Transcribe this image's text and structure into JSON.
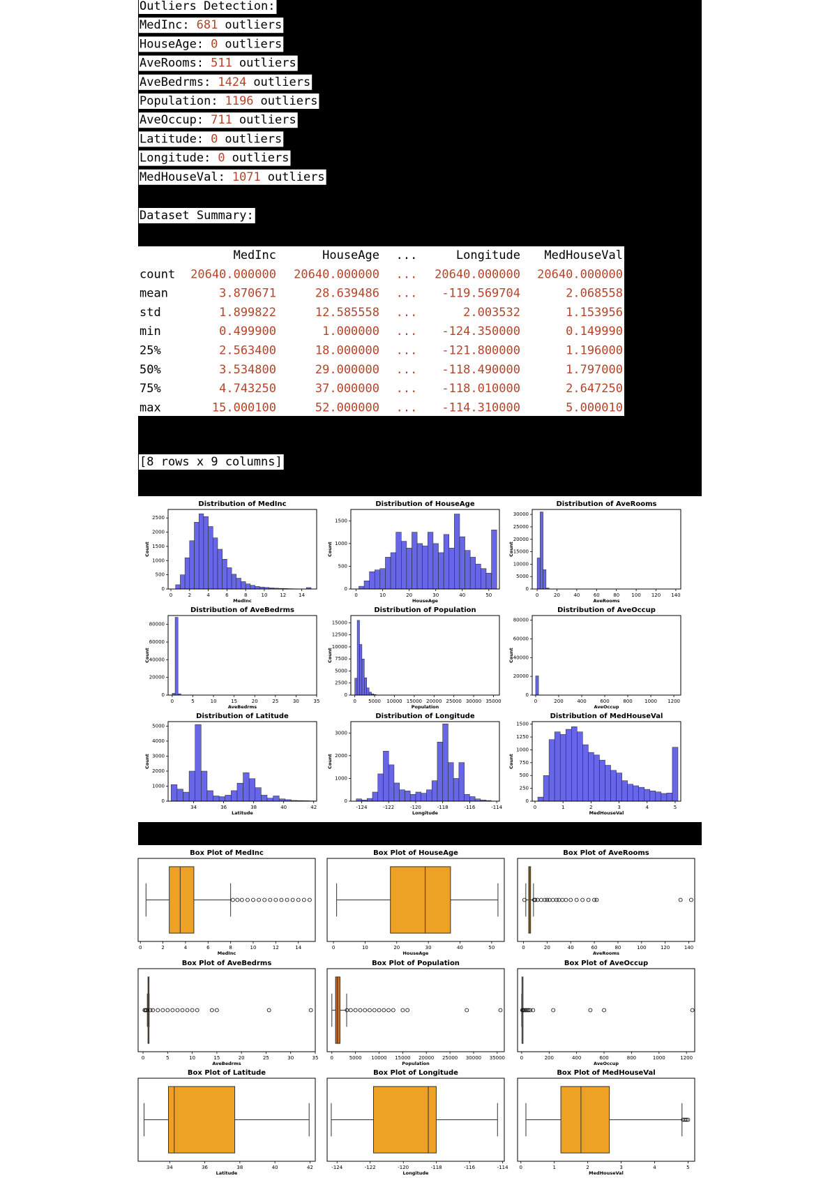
{
  "outliers": {
    "title": "Outliers Detection:",
    "lines": [
      {
        "name": "MedInc:",
        "count": 681,
        "suffix": "outliers"
      },
      {
        "name": "HouseAge:",
        "count": 0,
        "suffix": "outliers"
      },
      {
        "name": "AveRooms:",
        "count": 511,
        "suffix": "outliers"
      },
      {
        "name": "AveBedrms:",
        "count": 1424,
        "suffix": "outliers"
      },
      {
        "name": "Population:",
        "count": 1196,
        "suffix": "outliers"
      },
      {
        "name": "AveOccup:",
        "count": 711,
        "suffix": "outliers"
      },
      {
        "name": "Latitude:",
        "count": 0,
        "suffix": "outliers"
      },
      {
        "name": "Longitude:",
        "count": 0,
        "suffix": "outliers"
      },
      {
        "name": "MedHouseVal:",
        "count": 1071,
        "suffix": "outliers"
      }
    ]
  },
  "summary": {
    "title": "Dataset Summary:",
    "columns": [
      "MedInc",
      "HouseAge",
      "...",
      "Longitude",
      "MedHouseVal"
    ],
    "rows": [
      {
        "label": "count",
        "cells": [
          "20640.000000",
          "20640.000000",
          "...",
          "20640.000000",
          "20640.000000"
        ]
      },
      {
        "label": "mean",
        "cells": [
          "3.870671",
          "28.639486",
          "...",
          "-119.569704",
          "2.068558"
        ]
      },
      {
        "label": "std",
        "cells": [
          "1.899822",
          "12.585558",
          "...",
          "2.003532",
          "1.153956"
        ]
      },
      {
        "label": "min",
        "cells": [
          "0.499900",
          "1.000000",
          "...",
          "-124.350000",
          "0.149990"
        ]
      },
      {
        "label": "25%",
        "cells": [
          "2.563400",
          "18.000000",
          "...",
          "-121.800000",
          "1.196000"
        ]
      },
      {
        "label": "50%",
        "cells": [
          "3.534800",
          "29.000000",
          "...",
          "-118.490000",
          "1.797000"
        ]
      },
      {
        "label": "75%",
        "cells": [
          "4.743250",
          "37.000000",
          "...",
          "-118.010000",
          "2.647250"
        ]
      },
      {
        "label": "max",
        "cells": [
          "15.000100",
          "52.000000",
          "...",
          "-114.310000",
          "5.000010"
        ]
      }
    ],
    "footer": "[8 rows x 9 columns]"
  },
  "chart_data": [
    {
      "type": "histogram",
      "title": "Distribution of MedInc",
      "xlabel": "MedInc",
      "ylabel": "Count",
      "color": "#6666e6",
      "bins": [
        0.5,
        1,
        1.5,
        2,
        2.5,
        3,
        3.5,
        4,
        4.5,
        5,
        5.5,
        6,
        6.5,
        7,
        7.5,
        8,
        8.5,
        9,
        9.5,
        10,
        10.5,
        11,
        11.5,
        12,
        12.5,
        13,
        13.5,
        14,
        14.5,
        15
      ],
      "counts": [
        150,
        500,
        1100,
        1700,
        2350,
        2650,
        2550,
        2200,
        1800,
        1400,
        1050,
        750,
        520,
        380,
        260,
        180,
        130,
        90,
        70,
        55,
        40,
        30,
        22,
        18,
        12,
        8,
        5,
        5,
        50
      ],
      "xlim": [
        -0.3,
        15.6
      ],
      "xticks": [
        0,
        2,
        4,
        6,
        8,
        10,
        12,
        14
      ],
      "ylim": [
        0,
        2800
      ],
      "yticks": [
        0,
        500,
        1000,
        1500,
        2000,
        2500
      ]
    },
    {
      "type": "histogram",
      "title": "Distribution of HouseAge",
      "xlabel": "HouseAge",
      "ylabel": "Count",
      "color": "#6666e6",
      "bins": [
        1,
        3,
        5,
        7,
        9,
        11,
        13,
        15,
        17,
        19,
        21,
        23,
        25,
        27,
        29,
        31,
        33,
        35,
        37,
        39,
        41,
        43,
        45,
        47,
        49,
        51,
        53
      ],
      "counts": [
        60,
        180,
        380,
        420,
        450,
        700,
        800,
        1250,
        1050,
        900,
        1250,
        1000,
        950,
        1250,
        1000,
        800,
        1200,
        900,
        1650,
        1150,
        850,
        700,
        550,
        450,
        350,
        1300
      ],
      "xlim": [
        -2,
        54
      ],
      "xticks": [
        0,
        10,
        20,
        30,
        40,
        50
      ],
      "ylim": [
        0,
        1750
      ],
      "yticks": [
        0,
        500,
        1000,
        1500
      ]
    },
    {
      "type": "histogram",
      "title": "Distribution of AveRooms",
      "xlabel": "AveRooms",
      "ylabel": "Count",
      "color": "#6666e6",
      "bins": [
        0,
        3,
        6,
        9,
        12,
        141
      ],
      "counts": [
        12500,
        31000,
        7800,
        400,
        60
      ],
      "xlim": [
        -5,
        145
      ],
      "xticks": [
        0,
        20,
        40,
        60,
        80,
        100,
        120,
        140
      ],
      "ylim": [
        0,
        32000
      ],
      "yticks": [
        0,
        5000,
        10000,
        15000,
        20000,
        25000,
        30000
      ]
    },
    {
      "type": "histogram",
      "title": "Distribution of AveBedrms",
      "xlabel": "AveBedrms",
      "ylabel": "Count",
      "color": "#6666e6",
      "bins": [
        0,
        0.7,
        1.4,
        2.1
      ],
      "counts": [
        2000,
        88000,
        1500
      ],
      "xlim": [
        -1,
        35
      ],
      "xticks": [
        0,
        5,
        10,
        15,
        20,
        25,
        30,
        35
      ],
      "ylim": [
        0,
        90000
      ],
      "yticks": [
        0,
        20000,
        40000,
        60000,
        80000
      ]
    },
    {
      "type": "histogram",
      "title": "Distribution of Population",
      "xlabel": "Population",
      "ylabel": "Count",
      "color": "#6666e6",
      "bins": [
        0,
        600,
        1200,
        1800,
        2400,
        3000,
        3600,
        4200,
        4800,
        5400
      ],
      "counts": [
        3500,
        15500,
        10500,
        7500,
        3600,
        1500,
        600,
        250,
        100
      ],
      "xlim": [
        -1000,
        36500
      ],
      "xticks": [
        0,
        5000,
        10000,
        15000,
        20000,
        25000,
        30000,
        35000
      ],
      "ylim": [
        0,
        16500
      ],
      "yticks": [
        0,
        2500,
        5000,
        7500,
        10000,
        12500,
        15000
      ]
    },
    {
      "type": "histogram",
      "title": "Distribution of AveOccup",
      "xlabel": "AveOccup",
      "ylabel": "Count",
      "color": "#6666e6",
      "bins": [
        0,
        25,
        50
      ],
      "counts": [
        20500,
        100
      ],
      "xlim": [
        -30,
        1260
      ],
      "xticks": [
        0,
        200,
        400,
        600,
        800,
        1000,
        1200
      ],
      "ylim": [
        0,
        85000
      ],
      "yticks": [
        0,
        20000,
        40000,
        60000,
        80000
      ]
    },
    {
      "type": "histogram",
      "title": "Distribution of Latitude",
      "xlabel": "Latitude",
      "ylabel": "Count",
      "color": "#6666e6",
      "bins": [
        32.5,
        32.9,
        33.3,
        33.7,
        34.1,
        34.5,
        34.9,
        35.3,
        35.7,
        36.1,
        36.5,
        36.9,
        37.3,
        37.7,
        38.1,
        38.5,
        38.9,
        39.3,
        39.7,
        40.1,
        40.5,
        40.9,
        41.3,
        41.7,
        42.1
      ],
      "counts": [
        1100,
        800,
        600,
        2000,
        5100,
        2000,
        700,
        350,
        300,
        400,
        700,
        1200,
        1900,
        1500,
        900,
        400,
        200,
        350,
        150,
        100,
        50,
        40,
        30,
        20
      ],
      "xlim": [
        32.3,
        42.2
      ],
      "xticks": [
        34,
        36,
        38,
        40,
        42
      ],
      "ylim": [
        0,
        5300
      ],
      "yticks": [
        0,
        1000,
        2000,
        3000,
        4000,
        5000
      ]
    },
    {
      "type": "histogram",
      "title": "Distribution of Longitude",
      "xlabel": "Longitude",
      "ylabel": "Count",
      "color": "#6666e6",
      "bins": [
        -124.4,
        -124,
        -123.6,
        -123.2,
        -122.8,
        -122.4,
        -122,
        -121.6,
        -121.2,
        -120.8,
        -120.4,
        -120,
        -119.6,
        -119.2,
        -118.8,
        -118.4,
        -118,
        -117.6,
        -117.2,
        -116.8,
        -116.4,
        -116,
        -115.6,
        -115.2,
        -114.8,
        -114.4
      ],
      "counts": [
        100,
        50,
        120,
        400,
        1200,
        2200,
        1600,
        800,
        500,
        450,
        300,
        400,
        350,
        500,
        900,
        2600,
        3400,
        1700,
        1000,
        1700,
        300,
        200,
        100,
        50,
        30
      ],
      "xlim": [
        -124.8,
        -113.8
      ],
      "xticks": [
        -124,
        -122,
        -120,
        -118,
        -116,
        -114
      ],
      "ylim": [
        0,
        3500
      ],
      "yticks": [
        0,
        1000,
        2000,
        3000
      ]
    },
    {
      "type": "histogram",
      "title": "Distribution of MedHouseVal",
      "xlabel": "MedHouseVal",
      "ylabel": "Count",
      "color": "#6666e6",
      "bins": [
        0.1,
        0.3,
        0.5,
        0.7,
        0.9,
        1.1,
        1.3,
        1.5,
        1.7,
        1.9,
        2.1,
        2.3,
        2.5,
        2.7,
        2.9,
        3.1,
        3.3,
        3.5,
        3.7,
        3.9,
        4.1,
        4.3,
        4.5,
        4.7,
        4.9,
        5.1
      ],
      "counts": [
        80,
        500,
        1200,
        1350,
        1300,
        1400,
        1450,
        1350,
        1100,
        950,
        900,
        800,
        700,
        600,
        550,
        400,
        330,
        300,
        270,
        230,
        200,
        180,
        150,
        160,
        1050
      ],
      "xlim": [
        -0.1,
        5.2
      ],
      "xticks": [
        0,
        1,
        2,
        3,
        4,
        5
      ],
      "ylim": [
        0,
        1550
      ],
      "yticks": [
        0,
        250,
        500,
        750,
        1000,
        1250,
        1500
      ]
    },
    {
      "type": "box",
      "title": "Box Plot of MedInc",
      "xlabel": "MedInc",
      "color": "#eda125",
      "whisker_low": 0.5,
      "q1": 2.56,
      "median": 3.53,
      "q3": 4.74,
      "whisker_high": 8.0,
      "outliers": [
        8.2,
        8.6,
        9,
        9.5,
        10,
        10.5,
        11,
        11.5,
        12,
        12.5,
        13,
        13.5,
        14,
        14.5,
        15
      ],
      "xlim": [
        -0.2,
        15.5
      ],
      "xticks": [
        0,
        2,
        4,
        6,
        8,
        10,
        12,
        14
      ]
    },
    {
      "type": "box",
      "title": "Box Plot of HouseAge",
      "xlabel": "HouseAge",
      "color": "#eda125",
      "whisker_low": 1,
      "q1": 18,
      "median": 29,
      "q3": 37,
      "whisker_high": 52,
      "outliers": [],
      "xlim": [
        -2,
        54
      ],
      "xticks": [
        0,
        10,
        20,
        30,
        40,
        50
      ]
    },
    {
      "type": "box",
      "title": "Box Plot of AveRooms",
      "xlabel": "AveRooms",
      "color": "#eda125",
      "whisker_low": 2,
      "q1": 4.44,
      "median": 5.23,
      "q3": 6.05,
      "whisker_high": 8.5,
      "outliers": [
        0.85,
        9,
        10,
        12,
        15,
        18,
        20,
        22,
        25,
        28,
        30,
        33,
        36,
        40,
        45,
        50,
        55,
        60,
        62,
        133,
        142
      ],
      "xlim": [
        -5,
        145
      ],
      "xticks": [
        0,
        20,
        40,
        60,
        80,
        100,
        120,
        140
      ]
    },
    {
      "type": "box",
      "title": "Box Plot of AveBedrms",
      "xlabel": "AveBedrms",
      "color": "#eda125",
      "whisker_low": 0.87,
      "q1": 1.01,
      "median": 1.05,
      "q3": 1.1,
      "whisker_high": 1.24,
      "outliers": [
        0.33,
        0.5,
        0.7,
        1.5,
        2,
        3,
        4,
        5,
        6,
        7,
        8,
        9,
        10,
        11,
        14,
        15,
        25.6,
        34.1
      ],
      "xlim": [
        -1,
        35
      ],
      "xticks": [
        0,
        5,
        10,
        15,
        20,
        25,
        30,
        35
      ]
    },
    {
      "type": "box",
      "title": "Box Plot of Population",
      "xlabel": "Population",
      "color": "#c8702a",
      "whisker_low": 3,
      "q1": 787,
      "median": 1166,
      "q3": 1725,
      "whisker_high": 3132,
      "outliers": [
        3200,
        4000,
        5000,
        6000,
        7000,
        8000,
        9000,
        10000,
        11000,
        12000,
        13000,
        15000,
        16000,
        28566,
        35682
      ],
      "xlim": [
        -1000,
        36500
      ],
      "xticks": [
        0,
        5000,
        10000,
        15000,
        20000,
        25000,
        30000,
        35000
      ]
    },
    {
      "type": "box",
      "title": "Box Plot of AveOccup",
      "xlabel": "AveOccup",
      "color": "#eda125",
      "whisker_low": 0.69,
      "q1": 2.43,
      "median": 2.82,
      "q3": 3.28,
      "whisker_high": 4.56,
      "outliers": [
        5,
        10,
        20,
        30,
        40,
        50,
        63,
        83,
        230,
        500,
        600,
        1243
      ],
      "xlim": [
        -30,
        1260
      ],
      "xticks": [
        0,
        200,
        400,
        600,
        800,
        1000,
        1200
      ]
    },
    {
      "type": "box",
      "title": "Box Plot of Latitude",
      "xlabel": "Latitude",
      "color": "#eda125",
      "whisker_low": 32.54,
      "q1": 33.93,
      "median": 34.26,
      "q3": 37.71,
      "whisker_high": 41.95,
      "outliers": [],
      "xlim": [
        32.2,
        42.3
      ],
      "xticks": [
        34,
        36,
        38,
        40,
        42
      ]
    },
    {
      "type": "box",
      "title": "Box Plot of Longitude",
      "xlabel": "Longitude",
      "color": "#eda125",
      "whisker_low": -124.35,
      "q1": -121.8,
      "median": -118.49,
      "q3": -118.01,
      "whisker_high": -114.31,
      "outliers": [],
      "xlim": [
        -124.6,
        -113.9
      ],
      "xticks": [
        -124,
        -122,
        -120,
        -118,
        -116,
        -114
      ]
    },
    {
      "type": "box",
      "title": "Box Plot of MedHouseVal",
      "xlabel": "MedHouseVal",
      "color": "#eda125",
      "whisker_low": 0.15,
      "q1": 1.196,
      "median": 1.797,
      "q3": 2.647,
      "whisker_high": 4.82,
      "outliers": [
        4.85,
        4.9,
        4.95,
        5.0
      ],
      "xlim": [
        -0.1,
        5.2
      ],
      "xticks": [
        0,
        1,
        2,
        3,
        4,
        5
      ]
    }
  ]
}
